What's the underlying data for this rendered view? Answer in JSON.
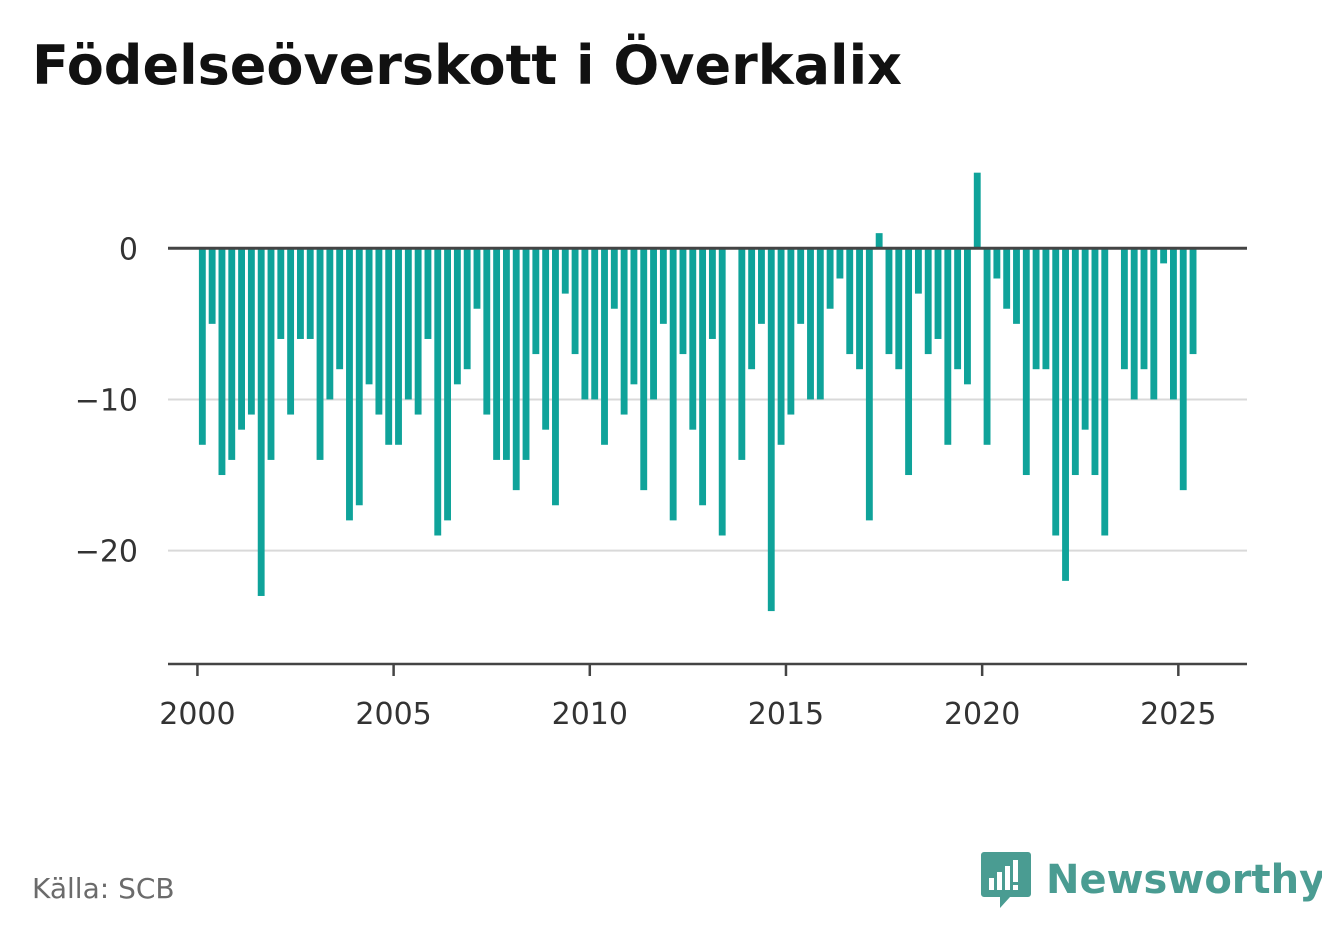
{
  "colors": {
    "bar": "#0fa39a",
    "axis": "#444444",
    "grid": "#d9d9d9",
    "brand": "#4a9c92"
  },
  "header": {
    "title": "Födelseöverskott i Överkalix"
  },
  "footer": {
    "source": "Källa: SCB",
    "brand": "Newsworthy",
    "brand_icon": "bar-chart-speech-bubble-icon"
  },
  "chart_data": {
    "type": "bar",
    "title": "Födelseöverskott i Överkalix",
    "xlabel": "",
    "ylabel": "",
    "x_start": "2000Q1",
    "frequency": "quarterly",
    "xlim": [
      1999.25,
      2026.75
    ],
    "ylim": [
      -27.5,
      6.5
    ],
    "yticks": [
      0,
      -10,
      -20
    ],
    "ytick_labels": [
      "0",
      "−10",
      "−20"
    ],
    "xticks": [
      2000,
      2005,
      2010,
      2015,
      2020,
      2025
    ],
    "xtick_labels": [
      "2000",
      "2005",
      "2010",
      "2015",
      "2020",
      "2025"
    ],
    "grid": "horizontal",
    "values": [
      -13,
      -5,
      -15,
      -14,
      -12,
      -11,
      -23,
      -14,
      -6,
      -11,
      -6,
      -6,
      -14,
      -10,
      -8,
      -18,
      -17,
      -9,
      -11,
      -13,
      -13,
      -10,
      -11,
      -6,
      -19,
      -18,
      -9,
      -8,
      -4,
      -11,
      -14,
      -14,
      -16,
      -14,
      -7,
      -12,
      -17,
      -3,
      -7,
      -10,
      -10,
      -13,
      -4,
      -11,
      -9,
      -16,
      -10,
      -5,
      -18,
      -7,
      -12,
      -17,
      -6,
      -19,
      0,
      -14,
      -8,
      -5,
      -24,
      -13,
      -11,
      -5,
      -10,
      -10,
      -4,
      -2,
      -7,
      -8,
      -18,
      1,
      -7,
      -8,
      -15,
      -3,
      -7,
      -6,
      -13,
      -8,
      -9,
      5,
      -13,
      -2,
      -4,
      -5,
      -15,
      -8,
      -8,
      -19,
      -22,
      -15,
      -12,
      -15,
      -19,
      0,
      -8,
      -10,
      -8,
      -10,
      -1,
      -10,
      -16,
      -7
    ]
  }
}
